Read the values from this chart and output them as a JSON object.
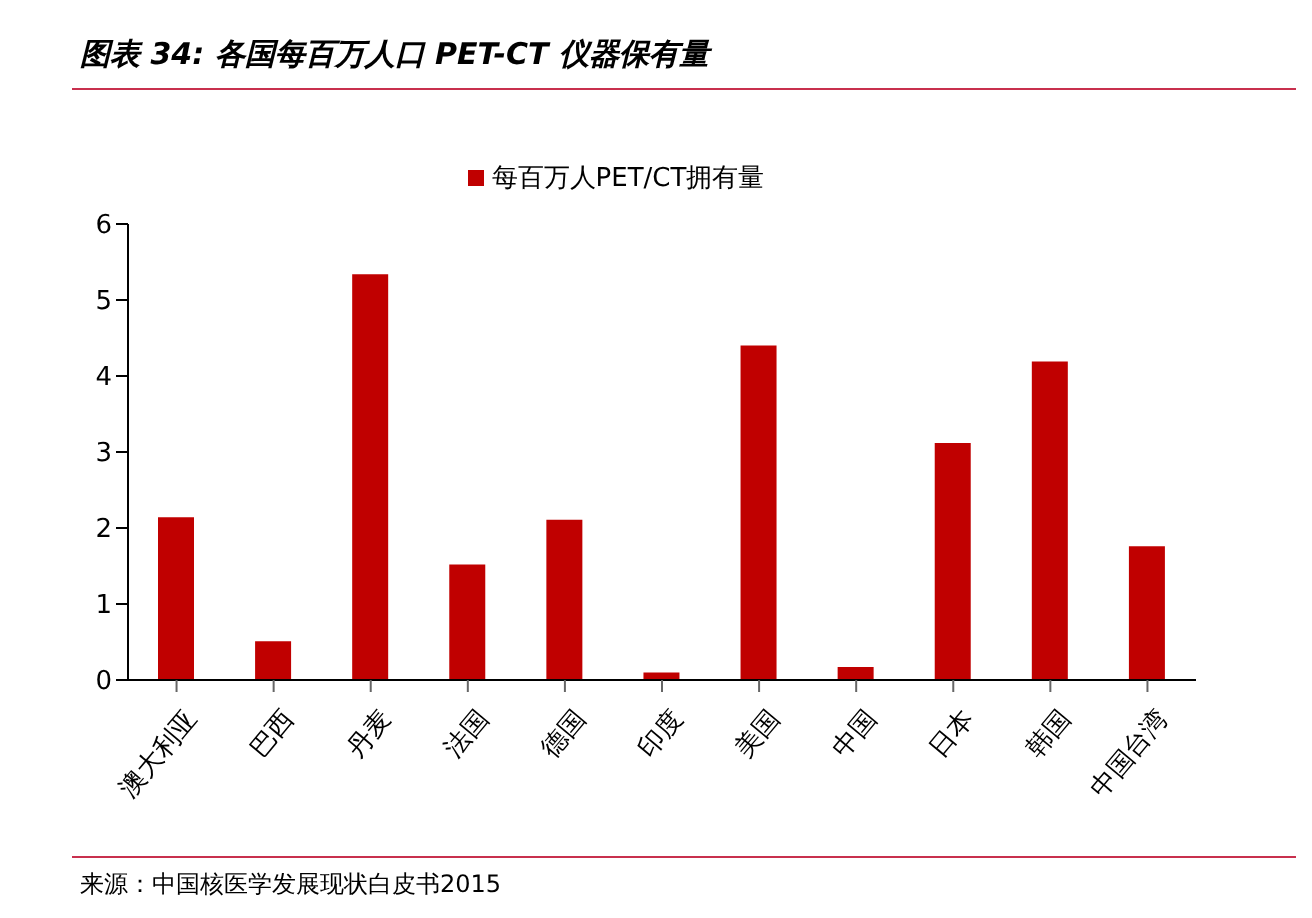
{
  "chart_data": {
    "type": "bar",
    "title": "图表 34: 各国每百万人口 PET-CT 仪器保有量",
    "categories": [
      "澳大利亚",
      "巴西",
      "丹麦",
      "法国",
      "德国",
      "印度",
      "美国",
      "中国",
      "日本",
      "韩国",
      "中国台湾"
    ],
    "series": [
      {
        "name": "每百万人PET/CT拥有量",
        "color": "#c00000",
        "values": [
          2.14,
          0.51,
          5.34,
          1.52,
          2.11,
          0.1,
          4.4,
          0.17,
          3.12,
          4.19,
          1.76
        ]
      }
    ],
    "ylim": [
      0,
      6
    ],
    "yticks": [
      0,
      1,
      2,
      3,
      4,
      5,
      6
    ],
    "grid": false,
    "legend": "top",
    "annotations": [
      "来源：中国核医学发展现状白皮书2015"
    ]
  }
}
